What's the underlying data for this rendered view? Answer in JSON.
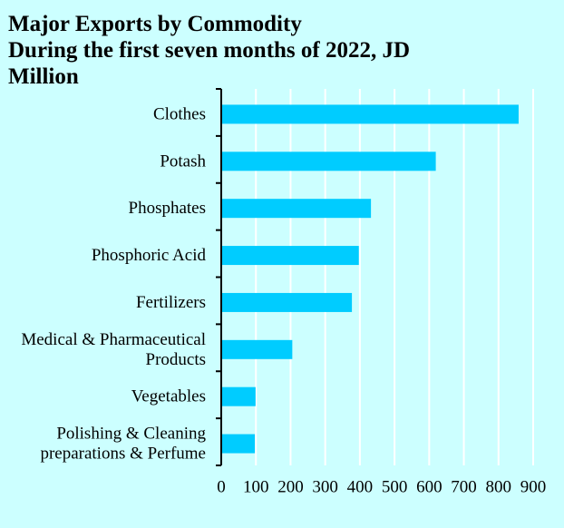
{
  "chart_data": {
    "type": "bar",
    "orientation": "horizontal",
    "title_lines": [
      "Major Exports by Commodity",
      "During the first seven months of 2022, JD",
      "Million"
    ],
    "categories": [
      [
        "Clothes"
      ],
      [
        "Potash"
      ],
      [
        "Phosphates"
      ],
      [
        "Phosphoric Acid"
      ],
      [
        "Fertilizers"
      ],
      [
        "Medical & Pharmaceutical",
        "Products"
      ],
      [
        "Vegetables"
      ],
      [
        "Polishing & Cleaning ",
        "preparations & Perfume"
      ]
    ],
    "values": [
      858,
      619,
      432,
      397,
      377,
      205,
      99,
      97
    ],
    "xlim": [
      0,
      900
    ],
    "xticks": [
      "0",
      "100",
      "200",
      "300",
      "400",
      "500",
      "600",
      "700",
      "800",
      "900"
    ],
    "grid": true,
    "legend": "none",
    "colors": {
      "bar": "#00ccff",
      "background": "#ccffff",
      "grid": "#ffffff",
      "axis": "#000000"
    }
  }
}
